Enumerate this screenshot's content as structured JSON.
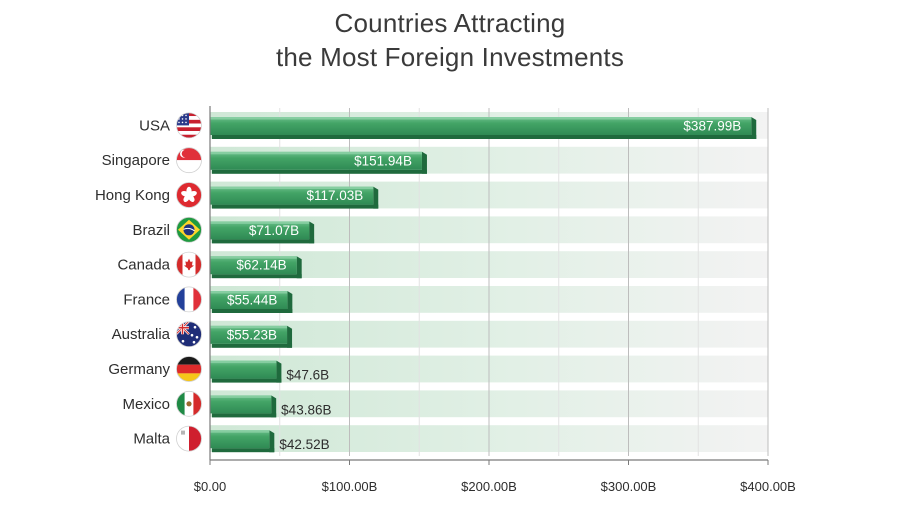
{
  "chart_data": {
    "type": "bar",
    "orientation": "horizontal",
    "title_lines": [
      "Countries Attracting",
      "the Most Foreign Investments"
    ],
    "categories": [
      "USA",
      "Singapore",
      "Hong Kong",
      "Brazil",
      "Canada",
      "France",
      "Australia",
      "Germany",
      "Mexico",
      "Malta"
    ],
    "values": [
      387.99,
      151.94,
      117.03,
      71.07,
      62.14,
      55.44,
      55.23,
      47.6,
      43.86,
      42.52
    ],
    "value_labels": [
      "$387.99B",
      "$151.94B",
      "$117.03B",
      "$71.07B",
      "$62.14B",
      "$55.44B",
      "$55.23B",
      "$47.6B",
      "$43.86B",
      "$42.52B"
    ],
    "flag_icons": [
      "usa-flag-icon",
      "singapore-flag-icon",
      "hong-kong-flag-icon",
      "brazil-flag-icon",
      "canada-flag-icon",
      "france-flag-icon",
      "australia-flag-icon",
      "germany-flag-icon",
      "mexico-flag-icon",
      "malta-flag-icon"
    ],
    "xlim": [
      0,
      400
    ],
    "xticks": [
      0,
      100,
      200,
      300,
      400
    ],
    "xtick_labels": [
      "$0.00",
      "$100.00B",
      "$200.00B",
      "$300.00B",
      "$400.00B"
    ],
    "grid": true,
    "colors": {
      "bar_top": "#3e9c60",
      "bar_bottom": "#2d8550",
      "bar_edge": "#1f6a3d",
      "bar_highlight": "#8fd2a8",
      "band_strong": "#d5eadb",
      "band_fade": "#f4f4f4"
    }
  }
}
